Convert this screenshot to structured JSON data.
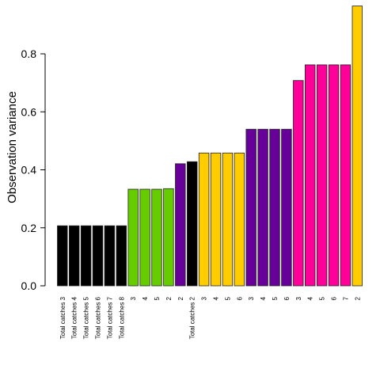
{
  "chart_data": {
    "type": "bar",
    "title": "",
    "xlabel": "",
    "ylabel": "Observation variance",
    "ylim": [
      0,
      0.96
    ],
    "yticks": [
      0.0,
      0.2,
      0.4,
      0.6,
      0.8
    ],
    "ytick_labels": [
      "0.0",
      "0.2",
      "0.4",
      "0.6",
      "0.8"
    ],
    "grid": false,
    "legend": "none",
    "categories": [
      "Total catches 3",
      "Total catches 4",
      "Total catches 5",
      "Total catches 6",
      "Total catches 7",
      "Total catches 8",
      "3",
      "4",
      "5",
      "2",
      "2",
      "Total catches 2",
      "3",
      "4",
      "5",
      "6",
      "3",
      "4",
      "5",
      "6",
      "3",
      "4",
      "5",
      "6",
      "7",
      "2"
    ],
    "values": [
      0.207,
      0.207,
      0.207,
      0.207,
      0.207,
      0.207,
      0.333,
      0.333,
      0.333,
      0.335,
      0.421,
      0.428,
      0.458,
      0.458,
      0.458,
      0.458,
      0.54,
      0.54,
      0.54,
      0.54,
      0.708,
      0.762,
      0.762,
      0.762,
      0.762,
      0.965
    ],
    "colors": [
      "#000000",
      "#000000",
      "#000000",
      "#000000",
      "#000000",
      "#000000",
      "#66cc00",
      "#66cc00",
      "#66cc00",
      "#66cc00",
      "#660099",
      "#000000",
      "#ffcc00",
      "#ffcc00",
      "#ffcc00",
      "#ffcc00",
      "#660099",
      "#660099",
      "#660099",
      "#660099",
      "#ff0099",
      "#ff0099",
      "#ff0099",
      "#ff0099",
      "#ff0099",
      "#ffcc00"
    ]
  }
}
